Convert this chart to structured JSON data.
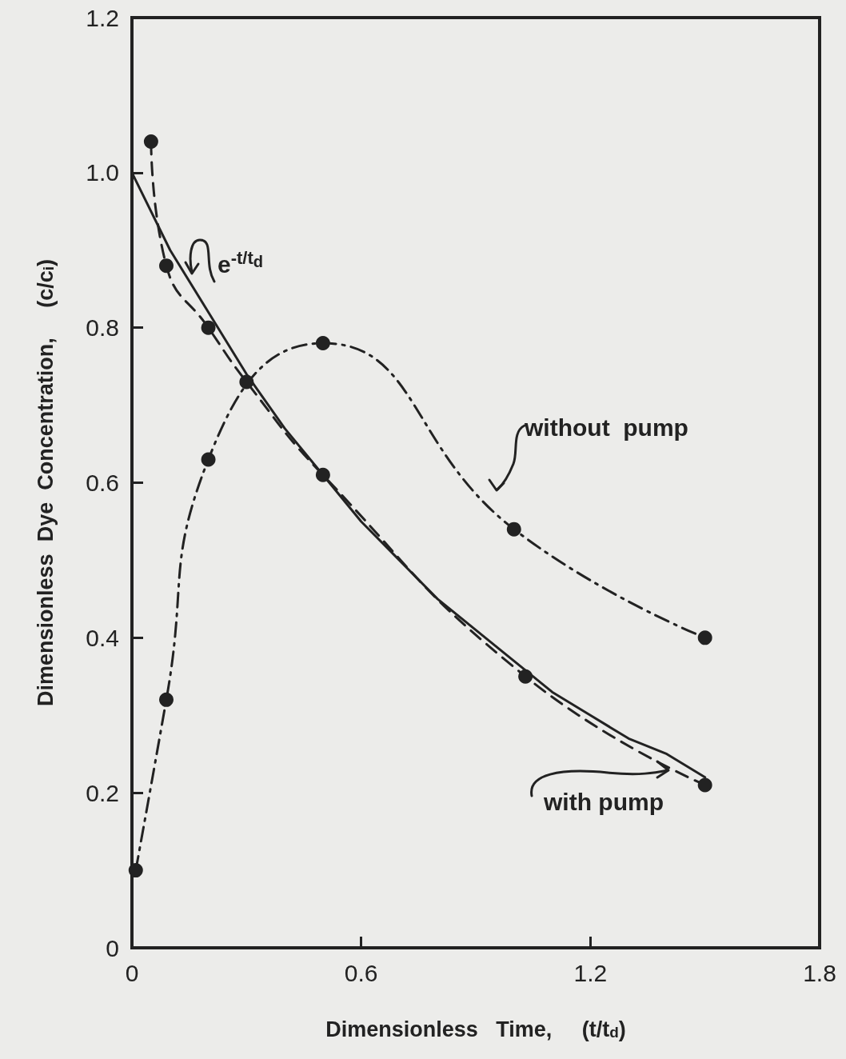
{
  "chart_data": {
    "type": "line",
    "xlabel": "Dimensionless   Time,     (t/t$_{d}$)",
    "ylabel": "Dimensionless  Dye  Concentration,     (c/c$_{i}$)",
    "xlim": [
      0,
      1.8
    ],
    "xticks": [
      0,
      0.6,
      1.2,
      1.8
    ],
    "ylim": [
      0,
      1.2
    ],
    "yticks": [
      0,
      0.2,
      0.4,
      0.6,
      0.8,
      {
        "value": 1,
        "label": "1.0"
      },
      1.2
    ],
    "grid": false,
    "series": [
      {
        "color": "#222222",
        "marker": "none",
        "line_style": "solid",
        "x": [
          0,
          0.1,
          0.2,
          0.3,
          0.4,
          0.5,
          0.6,
          0.7,
          0.8,
          0.9,
          1.0,
          1.1,
          1.2,
          1.3,
          1.4,
          1.5
        ],
        "values": [
          1.0,
          0.9,
          0.82,
          0.74,
          0.67,
          0.61,
          0.55,
          0.5,
          0.45,
          0.41,
          0.37,
          0.33,
          0.3,
          0.27,
          0.25,
          0.22
        ]
      },
      {
        "color": "#222222",
        "marker": "circle",
        "line_style": "dashed",
        "x": [
          0.05,
          0.09,
          0.2,
          0.3,
          0.5,
          1.03,
          1.5
        ],
        "values": [
          1.04,
          0.88,
          0.8,
          0.73,
          0.61,
          0.35,
          0.21
        ]
      },
      {
        "color": "#222222",
        "marker": "circle",
        "line_style": "dotted",
        "x": [
          0.01,
          0.09,
          0.2,
          0.5,
          1.0,
          1.5
        ],
        "values": [
          0.1,
          0.32,
          0.63,
          0.78,
          0.54,
          0.4
        ]
      }
    ],
    "annotations": [
      "e$^{-t/t}$$_{d}$",
      "without  pump",
      "with pump"
    ]
  }
}
